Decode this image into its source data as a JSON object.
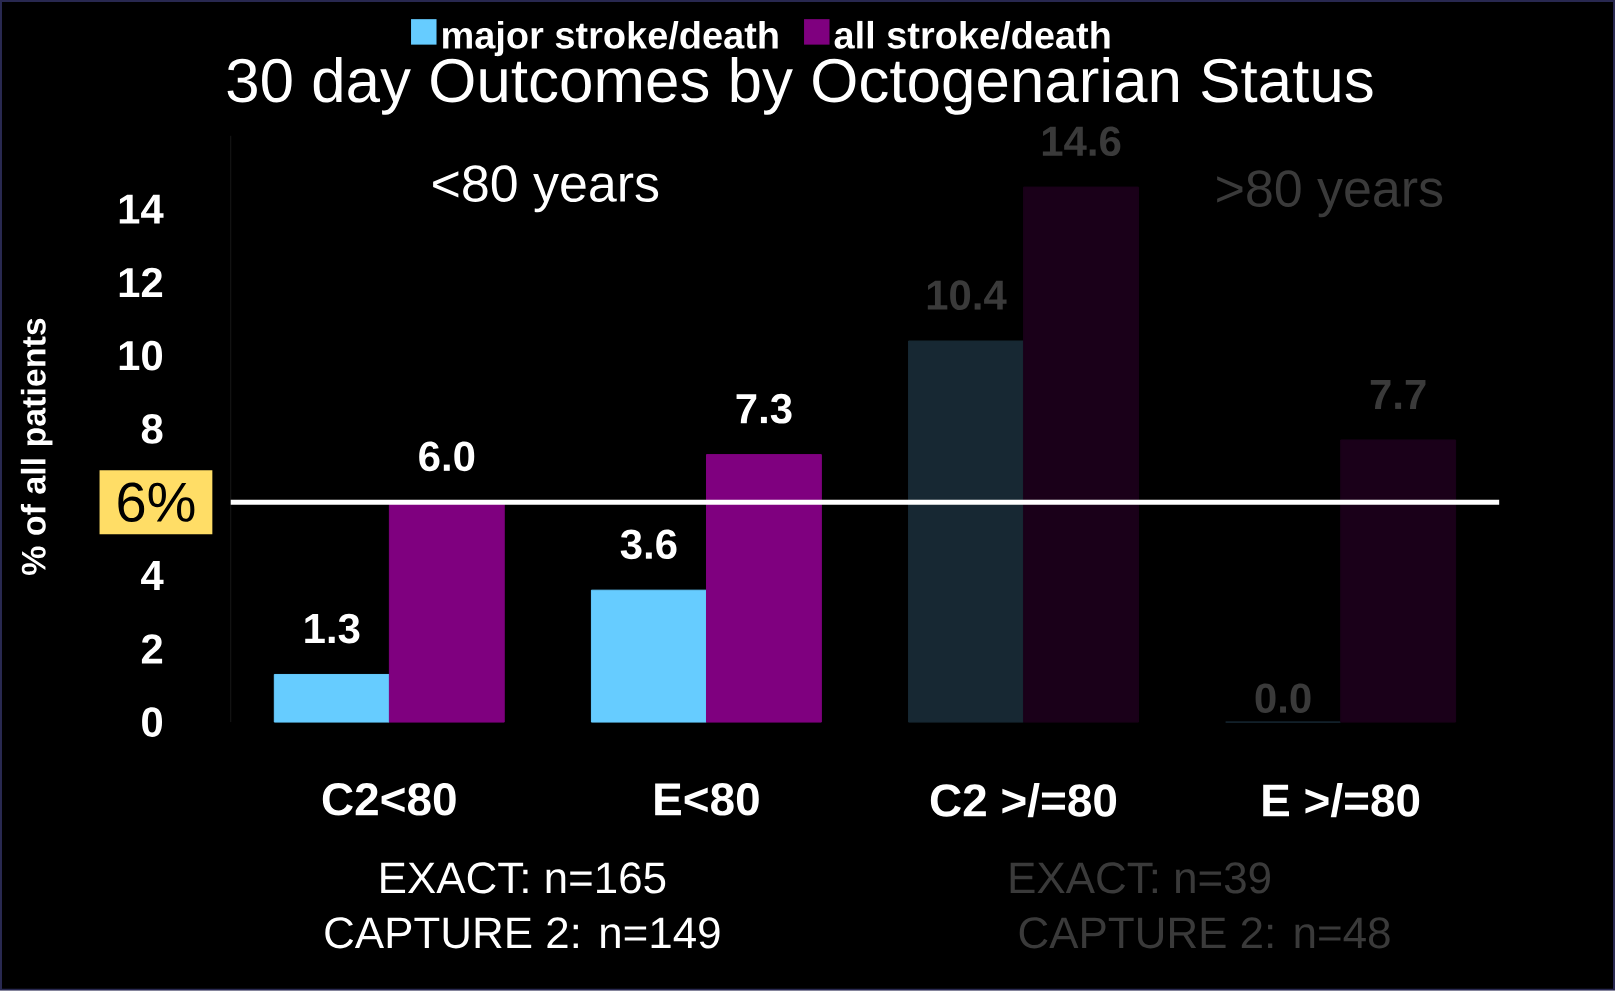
{
  "chart_data": {
    "type": "bar",
    "title": "30 day Outcomes by Octogenarian Status",
    "categories": [
      "C2<80",
      "E<80",
      "C2 >/=80",
      "E >/=80"
    ],
    "series": [
      {
        "name": "major stroke/death",
        "color": "#66ccff",
        "colors": [
          "#66ccff",
          "#66ccff",
          "#172833",
          "#172833"
        ],
        "values": [
          1.3,
          3.6,
          10.4,
          0.0
        ],
        "value_labels": [
          "1.3",
          "3.6",
          "10.4",
          "0.0"
        ]
      },
      {
        "name": "all stroke/death",
        "color": "#7f007f",
        "colors": [
          "#7f007f",
          "#7f007f",
          "#1a0019",
          "#1a0019"
        ],
        "values": [
          6.0,
          7.3,
          14.6,
          7.7
        ],
        "value_labels": [
          "6.0",
          "7.3",
          "14.6",
          "7.7"
        ]
      }
    ],
    "ylabel": "% of all patients",
    "ylim": [
      0,
      16
    ],
    "yticks": [
      0,
      2,
      4,
      8,
      10,
      12,
      14
    ],
    "ref_lines": [
      {
        "axis": "y",
        "value": 6,
        "label": "6%",
        "color": "#ffffff"
      }
    ],
    "annotations": [
      "<80 years",
      ">80 years",
      "EXACT: n=165",
      "CAPTURE 2: n=149",
      "EXACT: n=39",
      "CAPTURE 2: n=48"
    ],
    "legend": "top",
    "grid": false
  }
}
